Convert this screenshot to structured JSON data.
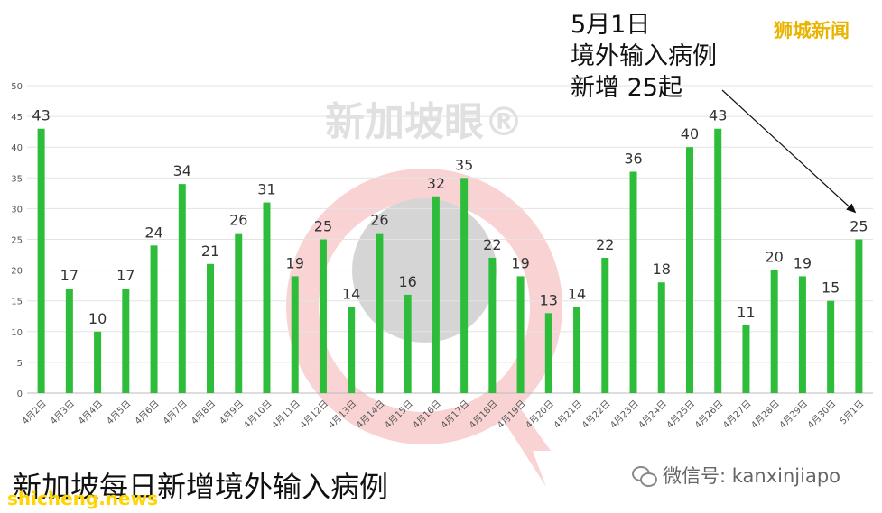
{
  "chart_data": {
    "type": "bar",
    "title": "新加坡每日新增境外输入病例",
    "categories": [
      "4月2日",
      "4月3日",
      "4月4日",
      "4月5日",
      "4月6日",
      "4月7日",
      "4月8日",
      "4月9日",
      "4月10日",
      "4月11日",
      "4月12日",
      "4月13日",
      "4月14日",
      "4月15日",
      "4月16日",
      "4月17日",
      "4月18日",
      "4月19日",
      "4月20日",
      "4月21日",
      "4月22日",
      "4月23日",
      "4月24日",
      "4月25日",
      "4月26日",
      "4月27日",
      "4月28日",
      "4月29日",
      "4月30日",
      "5月1日"
    ],
    "values": [
      43,
      17,
      10,
      17,
      24,
      34,
      21,
      26,
      31,
      19,
      25,
      14,
      26,
      16,
      32,
      35,
      22,
      19,
      13,
      14,
      22,
      36,
      18,
      40,
      43,
      11,
      20,
      19,
      15,
      25
    ],
    "yticks": [
      0,
      5,
      10,
      15,
      20,
      25,
      30,
      35,
      40,
      45,
      50
    ],
    "ylim": [
      0,
      50
    ],
    "grid": true,
    "bar_color": "#2ebd3a",
    "annotation": {
      "lines": [
        "5月1日",
        "境外输入病例",
        "新增 25起"
      ],
      "target_category": "5月1日"
    }
  },
  "watermark_text": "新加坡眼®",
  "brand": "狮城新闻",
  "source": "shicheng.news",
  "wechat": "微信号: kanxinjiapo"
}
